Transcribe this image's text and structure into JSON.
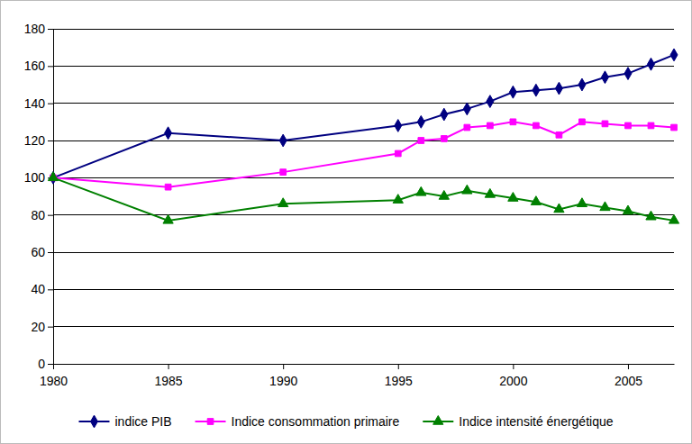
{
  "chart_data": {
    "type": "line",
    "x": [
      1980,
      1985,
      1990,
      1995,
      1996,
      1997,
      1998,
      1999,
      2000,
      2001,
      2002,
      2003,
      2004,
      2005,
      2006,
      2007
    ],
    "xlim": [
      1980,
      2007
    ],
    "xticks": [
      1980,
      1985,
      1990,
      1995,
      2000,
      2005
    ],
    "ylim": [
      0,
      180
    ],
    "yticks": [
      0,
      20,
      40,
      60,
      80,
      100,
      120,
      140,
      160,
      180
    ],
    "grid": true,
    "legend": "bottom",
    "series": [
      {
        "name": "indice PIB",
        "color": "#000080",
        "marker": "diamond",
        "values": [
          100,
          124,
          120,
          128,
          130,
          134,
          137,
          141,
          146,
          147,
          148,
          150,
          154,
          156,
          161,
          166
        ]
      },
      {
        "name": "Indice consommation primaire",
        "color": "#ff00ff",
        "marker": "square",
        "values": [
          100,
          95,
          103,
          113,
          120,
          121,
          127,
          128,
          130,
          128,
          123,
          130,
          129,
          128,
          128,
          127
        ]
      },
      {
        "name": "Indice intensité énergétique",
        "color": "#008000",
        "marker": "triangle",
        "values": [
          100,
          77,
          86,
          88,
          92,
          90,
          93,
          91,
          89,
          87,
          83,
          86,
          84,
          82,
          79,
          77
        ]
      }
    ]
  }
}
